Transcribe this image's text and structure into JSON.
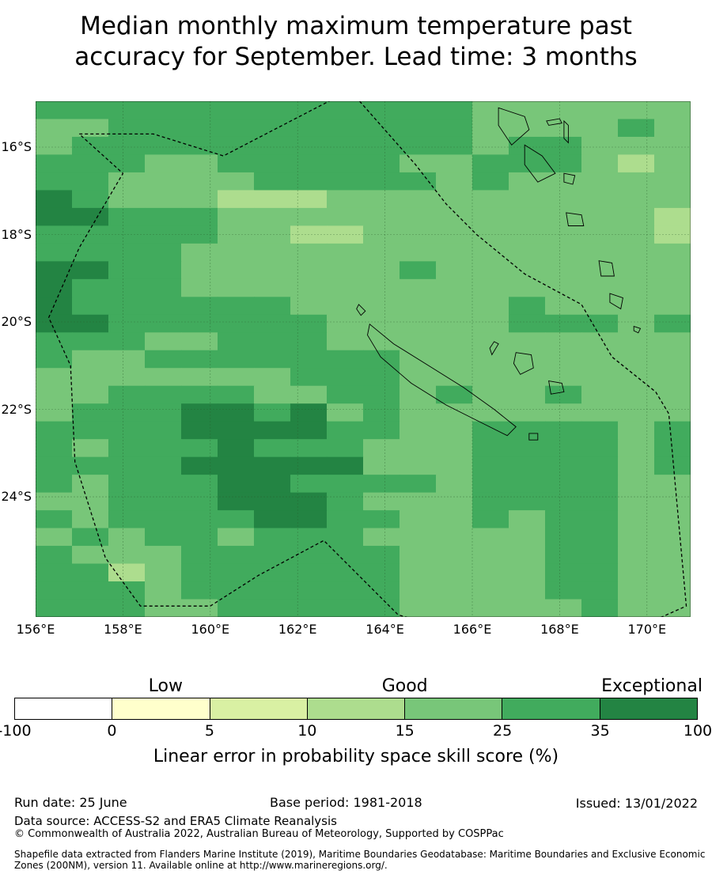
{
  "title": {
    "line1": "Median monthly maximum temperature past",
    "line2": "accuracy for September. Lead time: 3 months"
  },
  "map": {
    "lon_range": [
      156,
      171
    ],
    "lat_range": [
      -26.75,
      -14.95
    ],
    "lat_ticks": [
      "16°S",
      "18°S",
      "20°S",
      "22°S",
      "24°S"
    ],
    "lat_tick_values": [
      -16,
      -18,
      -20,
      -22,
      -24
    ],
    "lon_ticks": [
      "156°E",
      "158°E",
      "160°E",
      "162°E",
      "164°E",
      "166°E",
      "168°E",
      "170°E"
    ],
    "lon_tick_values": [
      156,
      158,
      160,
      162,
      164,
      166,
      168,
      170
    ],
    "grid_lines": true,
    "cell_size_deg": [
      0.833,
      0.556
    ],
    "cell_categories_legend": "0:0-5, 1:5-10, 2:10-15, 3:15-25, 4:25-35, 5:35-100",
    "cells": [
      "444444444444333333",
      "334444444444333343",
      "344444444444344333",
      "444334444433444323",
      "443333444443433333",
      "543332223333333333",
      "554443333333333332",
      "444443322333333332",
      "444433333333333333",
      "554433333343333333",
      "544433333333333333",
      "544444433333343333",
      "554444443333344434",
      "444334443333333333",
      "433444444433333333",
      "333333344433333333",
      "334444334434334333",
      "344455453433333333",
      "444455554433444434",
      "434445444333444434",
      "444455555333444434",
      "434445544443444433",
      "334445554333444433",
      "434444554433434433",
      "343443444333334433",
      "433344444433334433",
      "442344444433334433",
      "444344444433334433",
      "444334444433333433"
    ],
    "eez_boundary": [
      [
        157.0,
        -15.7
      ],
      [
        158.7,
        -15.7
      ],
      [
        160.3,
        -16.2
      ],
      [
        163.2,
        -14.7
      ],
      [
        164.7,
        -16.4
      ],
      [
        165.4,
        -17.3
      ],
      [
        166.1,
        -18.0
      ],
      [
        167.2,
        -18.9
      ],
      [
        168.5,
        -19.6
      ],
      [
        169.2,
        -20.8
      ],
      [
        170.2,
        -21.6
      ],
      [
        170.5,
        -22.1
      ],
      [
        170.9,
        -26.5
      ],
      [
        170.0,
        -26.9
      ],
      [
        168.8,
        -26.9
      ],
      [
        166.0,
        -27.2
      ],
      [
        164.3,
        -26.7
      ],
      [
        162.6,
        -25.0
      ],
      [
        161.1,
        -25.8
      ],
      [
        160.0,
        -26.5
      ],
      [
        158.4,
        -26.5
      ],
      [
        157.6,
        -25.4
      ],
      [
        156.9,
        -23.2
      ],
      [
        156.8,
        -21.0
      ],
      [
        156.3,
        -19.9
      ],
      [
        157.0,
        -18.3
      ],
      [
        158.0,
        -16.6
      ],
      [
        157.0,
        -15.7
      ]
    ],
    "islands": {
      "new_caledonia": [
        [
          163.65,
          -20.05
        ],
        [
          164.2,
          -20.5
        ],
        [
          165.0,
          -21.0
        ],
        [
          165.8,
          -21.5
        ],
        [
          166.5,
          -22.0
        ],
        [
          167.0,
          -22.4
        ],
        [
          166.8,
          -22.6
        ],
        [
          166.2,
          -22.3
        ],
        [
          165.4,
          -21.9
        ],
        [
          164.6,
          -21.4
        ],
        [
          163.9,
          -20.8
        ],
        [
          163.6,
          -20.3
        ]
      ],
      "belep": [
        [
          163.4,
          -19.6
        ],
        [
          163.55,
          -19.75
        ],
        [
          163.45,
          -19.85
        ],
        [
          163.35,
          -19.7
        ]
      ],
      "lifou": [
        [
          167.0,
          -20.7
        ],
        [
          167.35,
          -20.75
        ],
        [
          167.4,
          -21.05
        ],
        [
          167.1,
          -21.2
        ],
        [
          166.95,
          -20.95
        ]
      ],
      "mare": [
        [
          167.75,
          -21.35
        ],
        [
          168.05,
          -21.4
        ],
        [
          168.1,
          -21.6
        ],
        [
          167.8,
          -21.65
        ]
      ],
      "ouvea": [
        [
          166.5,
          -20.45
        ],
        [
          166.6,
          -20.5
        ],
        [
          166.45,
          -20.75
        ],
        [
          166.4,
          -20.6
        ]
      ],
      "isle_of_pines": [
        [
          167.3,
          -22.55
        ],
        [
          167.5,
          -22.55
        ],
        [
          167.5,
          -22.7
        ],
        [
          167.3,
          -22.7
        ]
      ],
      "espiritu_santo": [
        [
          166.6,
          -15.1
        ],
        [
          167.2,
          -15.3
        ],
        [
          167.3,
          -15.6
        ],
        [
          166.9,
          -15.95
        ],
        [
          166.6,
          -15.5
        ]
      ],
      "malekula": [
        [
          167.2,
          -15.95
        ],
        [
          167.6,
          -16.2
        ],
        [
          167.9,
          -16.6
        ],
        [
          167.5,
          -16.8
        ],
        [
          167.2,
          -16.4
        ]
      ],
      "efate": [
        [
          168.15,
          -17.5
        ],
        [
          168.5,
          -17.55
        ],
        [
          168.55,
          -17.8
        ],
        [
          168.2,
          -17.8
        ]
      ],
      "erromango": [
        [
          168.9,
          -18.6
        ],
        [
          169.2,
          -18.65
        ],
        [
          169.25,
          -18.95
        ],
        [
          168.95,
          -18.95
        ]
      ],
      "tanna": [
        [
          169.15,
          -19.35
        ],
        [
          169.45,
          -19.45
        ],
        [
          169.4,
          -19.7
        ],
        [
          169.15,
          -19.55
        ]
      ],
      "ambae": [
        [
          167.7,
          -15.4
        ],
        [
          168.0,
          -15.35
        ],
        [
          168.05,
          -15.45
        ],
        [
          167.75,
          -15.5
        ]
      ],
      "pentecost": [
        [
          168.1,
          -15.4
        ],
        [
          168.2,
          -15.5
        ],
        [
          168.2,
          -15.9
        ],
        [
          168.1,
          -15.8
        ]
      ],
      "epi": [
        [
          168.1,
          -16.6
        ],
        [
          168.35,
          -16.65
        ],
        [
          168.3,
          -16.85
        ],
        [
          168.1,
          -16.8
        ]
      ],
      "aneityum": [
        [
          169.7,
          -20.1
        ],
        [
          169.85,
          -20.15
        ],
        [
          169.8,
          -20.25
        ],
        [
          169.7,
          -20.2
        ]
      ]
    }
  },
  "colorbar": {
    "categories": [
      {
        "label": "Low",
        "at": -0.07
      },
      {
        "label": "Good",
        "at": 3.5
      },
      {
        "label": "Exceptional",
        "at": 7
      }
    ],
    "colors": [
      "#ffffff",
      "#ffffcc",
      "#d9f0a3",
      "#addd8e",
      "#78c679",
      "#41ab5d",
      "#238443"
    ],
    "tick_labels": [
      "-100",
      "0",
      "5",
      "10",
      "15",
      "25",
      "35",
      "100"
    ],
    "title": "Linear error in probability space skill score (%)"
  },
  "footer": {
    "run_date": "Run date: 25 June",
    "base_period": "Base period: 1981-2018",
    "issued": "Issued: 13/01/2022",
    "data_source": "Data source: ACCESS-S2 and ERA5 Climate Reanalysis",
    "copyright": "© Commonwealth of Australia 2022, Australian Bureau of Meteorology, Supported by COSPPac",
    "shapefile": "Shapefile data extracted from Flanders Marine Institute (2019), Maritime Boundaries Geodatabase: Maritime Boundaries and Exclusive Economic Zones (200NM), version 11. Available online at http://www.marineregions.org/."
  }
}
